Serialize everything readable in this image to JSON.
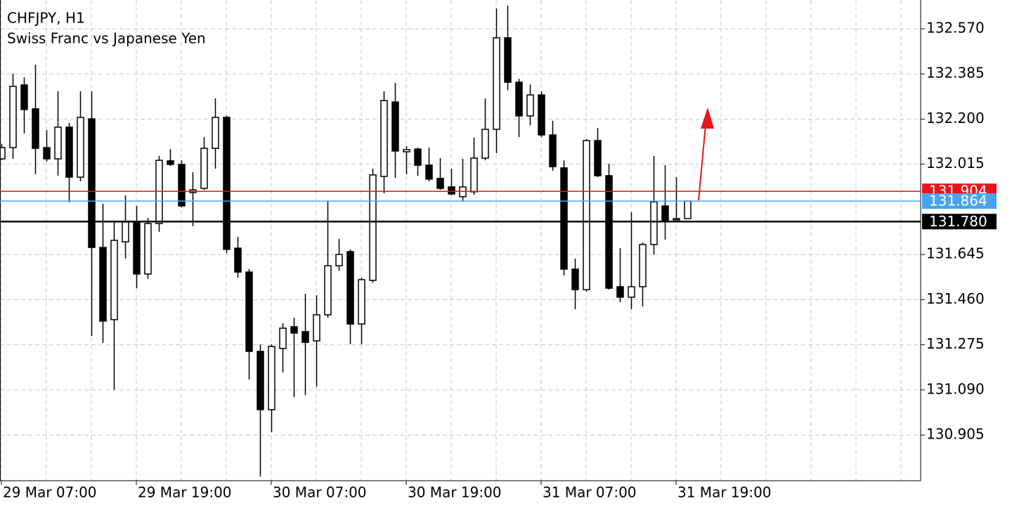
{
  "chart_data": {
    "type": "candlestick",
    "title": "CHFJPY, H1",
    "subtitle": "Swiss Franc vs Japanese Yen",
    "categories": [
      "29 Mar 07:00",
      null,
      null,
      null,
      null,
      null,
      null,
      null,
      null,
      null,
      null,
      null,
      "29 Mar 19:00",
      null,
      null,
      null,
      null,
      null,
      null,
      null,
      null,
      null,
      null,
      null,
      "30 Mar 07:00",
      null,
      null,
      null,
      null,
      null,
      null,
      null,
      null,
      null,
      null,
      null,
      "30 Mar 19:00",
      null,
      null,
      null,
      null,
      null,
      null,
      null,
      null,
      null,
      null,
      null,
      "31 Mar 07:00",
      null,
      null,
      null,
      null,
      null,
      null,
      null,
      null,
      null,
      null,
      null,
      "31 Mar 19:00",
      null
    ],
    "open": [
      132.037,
      132.083,
      132.34,
      132.242,
      132.083,
      132.037,
      132.167,
      131.962,
      132.201,
      131.674,
      131.378,
      131.697,
      131.778,
      131.565,
      131.772,
      132.029,
      132.014,
      131.899,
      131.916,
      132.08,
      132.207,
      131.671,
      131.573,
      131.248,
      131.009,
      131.26,
      131.349,
      131.329,
      131.291,
      131.398,
      131.599,
      131.657,
      131.36,
      131.539,
      131.965,
      132.27,
      132.066,
      132.077,
      132.011,
      131.957,
      131.922,
      131.882,
      131.902,
      132.04,
      132.158,
      132.533,
      132.351,
      132.213,
      132.299,
      132.135,
      132,
      131.585,
      131.501,
      132.112,
      131.968,
      131.513,
      131.47,
      131.513,
      131.686,
      131.844,
      131.787,
      131.792
    ],
    "high": [
      132.098,
      132.386,
      132.371,
      132.423,
      132.155,
      132.314,
      132.184,
      132.314,
      132.314,
      131.853,
      131.781,
      131.887,
      131.844,
      131.795,
      132.049,
      132.077,
      132.031,
      131.982,
      132.126,
      132.285,
      132.213,
      131.717,
      131.585,
      131.277,
      131.277,
      131.363,
      131.386,
      131.484,
      131.478,
      131.864,
      131.709,
      131.666,
      131.55,
      131.997,
      132.314,
      132.348,
      132.089,
      132.083,
      132.083,
      132.04,
      131.997,
      132.037,
      132.124,
      132.285,
      132.653,
      132.665,
      132.365,
      132.342,
      132.314,
      132.193,
      132.031,
      131.628,
      132.118,
      132.164,
      132.017,
      131.671,
      131.818,
      131.694,
      132.049,
      132.011,
      131.962,
      131.867
    ],
    "low": [
      132.031,
      132.037,
      132.141,
      131.974,
      132.026,
      131.968,
      131.859,
      131.945,
      131.311,
      131.283,
      131.09,
      131.628,
      131.507,
      131.545,
      131.738,
      132.008,
      131.838,
      131.761,
      131.91,
      131.997,
      131.651,
      131.55,
      131.133,
      130.735,
      130.917,
      131.162,
      131.061,
      131.069,
      131.104,
      131.386,
      131.579,
      131.277,
      131.277,
      131.53,
      131.896,
      131.959,
      131.974,
      131.968,
      131.945,
      131.91,
      131.887,
      131.861,
      131.89,
      132.031,
      132.06,
      132.319,
      132.126,
      132.175,
      132.126,
      131.988,
      131.559,
      131.421,
      131.493,
      131.962,
      131.501,
      131.45,
      131.421,
      131.432,
      131.645,
      131.706,
      131.787,
      131.792
    ],
    "close": [
      132.083,
      132.334,
      132.239,
      132.08,
      132.037,
      132.167,
      131.962,
      132.207,
      131.674,
      131.372,
      131.703,
      131.778,
      131.565,
      131.772,
      132.031,
      132.014,
      131.844,
      131.91,
      132.08,
      132.207,
      131.666,
      131.573,
      131.248,
      131.009,
      131.268,
      131.343,
      131.323,
      131.285,
      131.398,
      131.599,
      131.645,
      131.36,
      131.542,
      131.971,
      132.276,
      132.069,
      132.075,
      132.011,
      131.954,
      131.916,
      131.893,
      131.922,
      132.04,
      132.158,
      132.533,
      132.351,
      132.213,
      132.299,
      132.135,
      132.005,
      131.585,
      131.501,
      132.112,
      131.968,
      131.507,
      131.47,
      131.513,
      131.686,
      131.861,
      131.781,
      131.792,
      131.864
    ],
    "up_color": "#ffffff",
    "down_color": "#000000",
    "edge_color": "#000000",
    "ylim": [
      130.718,
      132.688
    ],
    "yticks": [
      {
        "value": 132.57,
        "label": "132.570"
      },
      {
        "value": 132.385,
        "label": "132.385"
      },
      {
        "value": 132.2,
        "label": "132.200"
      },
      {
        "value": 132.015,
        "label": "132.015"
      },
      {
        "value": 131.645,
        "label": "131.645"
      },
      {
        "value": 131.46,
        "label": "131.460"
      },
      {
        "value": 131.275,
        "label": "131.275"
      },
      {
        "value": 131.09,
        "label": "131.090"
      },
      {
        "value": 130.905,
        "label": "130.905"
      }
    ],
    "grid": true,
    "price_lines": [
      {
        "value": 131.904,
        "label": "131.904",
        "color": "#e8141e"
      },
      {
        "value": 131.864,
        "label": "131.864",
        "color": "#4aa3f0"
      },
      {
        "value": 131.78,
        "label": "131.780",
        "color": "#000000"
      }
    ]
  }
}
